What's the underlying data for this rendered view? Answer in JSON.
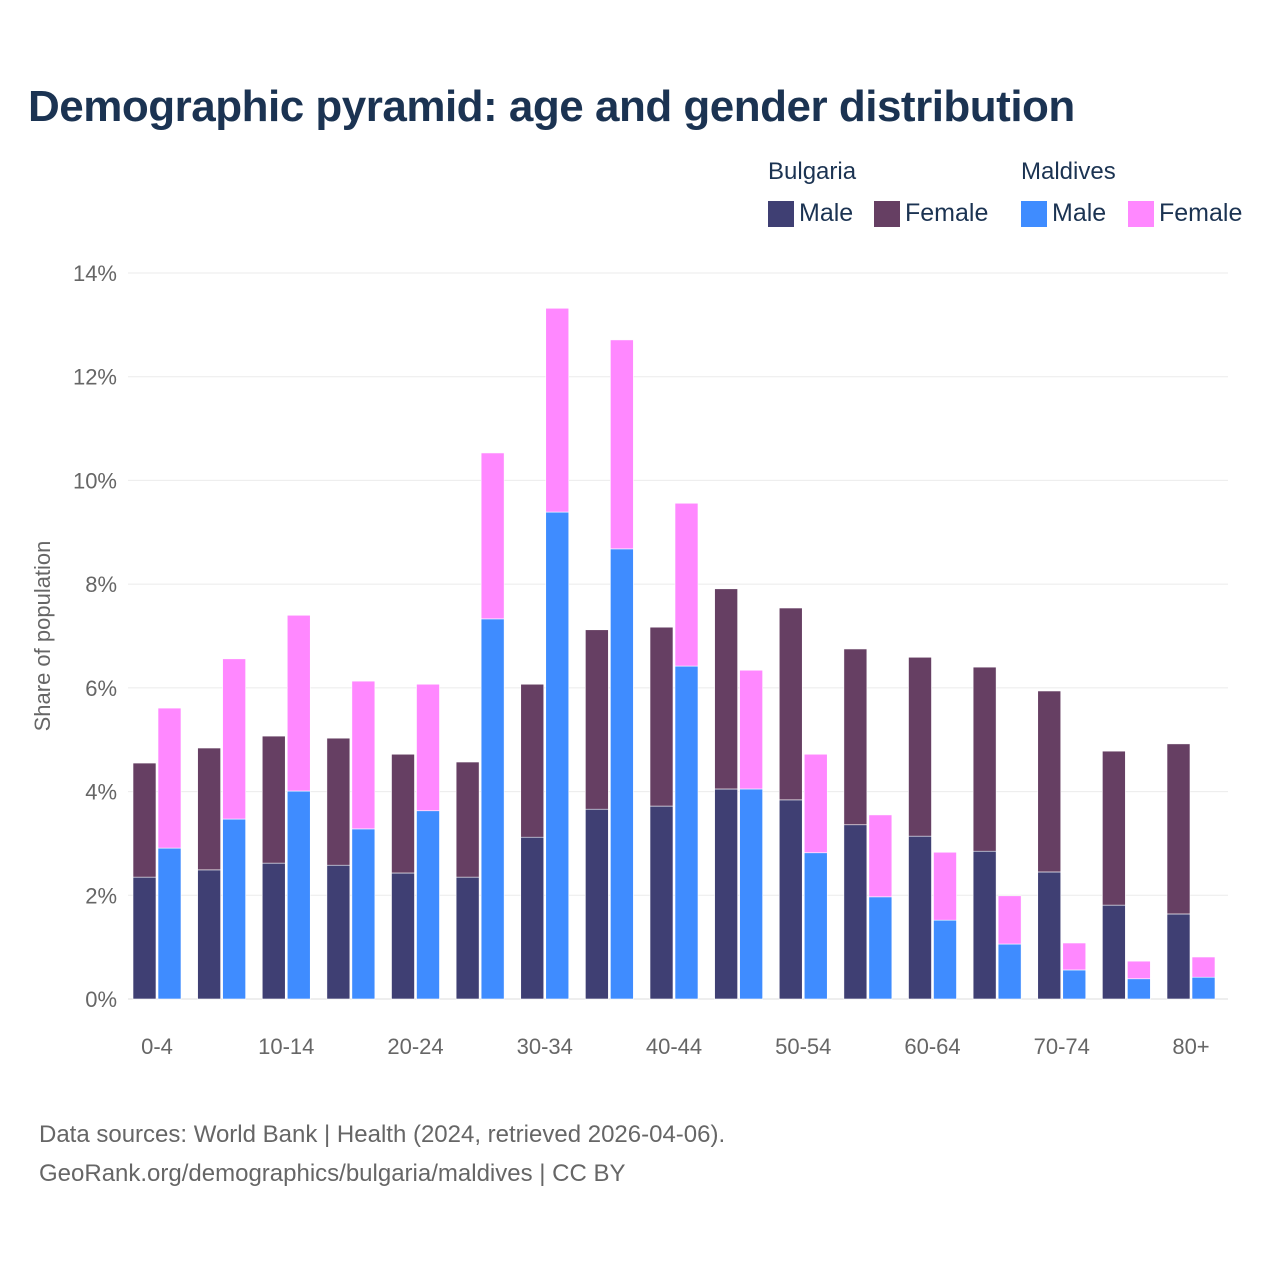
{
  "chart_data": {
    "type": "bar",
    "title": "Demographic pyramid: age and gender distribution",
    "ylabel": "Share of population",
    "xlabel": "",
    "ylim": [
      0,
      14
    ],
    "yticks": [
      "0%",
      "2%",
      "4%",
      "6%",
      "8%",
      "10%",
      "12%",
      "14%"
    ],
    "ytick_values": [
      0,
      2,
      4,
      6,
      8,
      10,
      12,
      14
    ],
    "grid": true,
    "legend_position": "top-right",
    "categories": [
      "0-4",
      "5-9",
      "10-14",
      "15-19",
      "20-24",
      "25-29",
      "30-34",
      "35-39",
      "40-44",
      "45-49",
      "50-54",
      "55-59",
      "60-64",
      "65-69",
      "70-74",
      "75-79",
      "80+"
    ],
    "xtick_labels_shown": [
      "0-4",
      "10-14",
      "20-24",
      "30-34",
      "40-44",
      "50-54",
      "60-64",
      "70-74",
      "80+"
    ],
    "countries": [
      {
        "name": "Bulgaria",
        "series": [
          {
            "name": "Male",
            "color": "#3f3f73",
            "values": [
              2.35,
              2.49,
              2.62,
              2.58,
              2.43,
              2.35,
              3.12,
              3.66,
              3.72,
              4.05,
              3.84,
              3.36,
              3.14,
              2.85,
              2.45,
              1.81,
              1.64
            ]
          },
          {
            "name": "Female",
            "color": "#663f63",
            "values": [
              2.2,
              2.35,
              2.45,
              2.45,
              2.29,
              2.22,
              2.95,
              3.46,
              3.45,
              3.86,
              3.7,
              3.39,
              3.45,
              3.55,
              3.49,
              2.97,
              3.28
            ]
          }
        ]
      },
      {
        "name": "Maldives",
        "series": [
          {
            "name": "Male",
            "color": "#3f8cff",
            "values": [
              2.91,
              3.47,
              4.01,
              3.28,
              3.63,
              7.33,
              9.39,
              8.68,
              6.42,
              4.05,
              2.82,
              1.97,
              1.52,
              1.06,
              0.56,
              0.39,
              0.42
            ]
          },
          {
            "name": "Female",
            "color": "#ff88ff",
            "values": [
              2.7,
              3.09,
              3.39,
              2.85,
              2.44,
              3.2,
              3.93,
              4.03,
              3.14,
              2.29,
              1.9,
              1.58,
              1.31,
              0.93,
              0.52,
              0.34,
              0.39
            ]
          }
        ]
      }
    ]
  },
  "footer": {
    "line1": "Data sources: World Bank | Health (2024, retrieved 2026-04-06).",
    "line2": "GeoRank.org/demographics/bulgaria/maldives | CC BY"
  }
}
